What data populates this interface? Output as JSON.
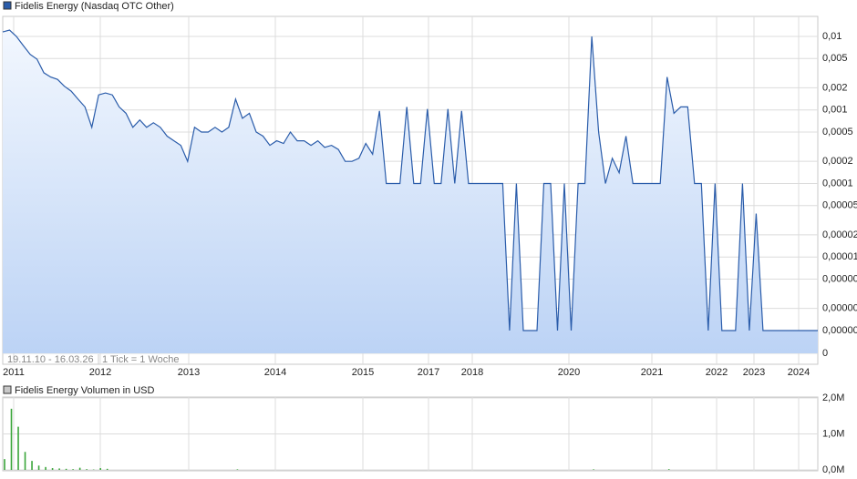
{
  "chart_data": [
    {
      "type": "line",
      "title": "Fidelis Energy (Nasdaq OTC Other)",
      "annotations": [
        "19.11.10 - 16.03.26",
        "1 Tick = 1 Woche"
      ],
      "log_scale": true,
      "grid": true,
      "x_labels": [
        "2011",
        "2012",
        "2013",
        "2014",
        "2015",
        "2017",
        "2018",
        "2020",
        "2021",
        "2022",
        "2023",
        "2024"
      ],
      "series": [
        {
          "name": "Fidelis Energy (Nasdaq OTC Other)",
          "color": "#2a5caa",
          "values": [
            0.0115,
            0.0122,
            0.01,
            0.0075,
            0.0057,
            0.0049,
            0.0032,
            0.0028,
            0.0026,
            0.0021,
            0.0018,
            0.0014,
            0.0011,
            0.00058,
            0.0016,
            0.0017,
            0.0016,
            0.0011,
            0.0009,
            0.00058,
            0.00073,
            0.00058,
            0.00067,
            0.00058,
            0.00044,
            0.00038,
            0.00033,
            0.0002,
            0.00058,
            0.0005,
            0.0005,
            0.00058,
            0.0005,
            0.00058,
            0.0014,
            0.00077,
            0.0009,
            0.0005,
            0.00044,
            0.00033,
            0.00038,
            0.00035,
            0.0005,
            0.00038,
            0.00038,
            0.00033,
            0.00038,
            0.00031,
            0.00033,
            0.00029,
            0.0002,
            0.0002,
            0.00022,
            0.00035,
            0.00025,
            0.00097,
            0.0001,
            0.0001,
            0.0001,
            0.0011,
            0.0001,
            0.0001,
            0.00103,
            0.0001,
            0.0001,
            0.00103,
            0.0001,
            0.00097,
            0.0001,
            0.0001,
            0.0001,
            0.0001,
            0.0001,
            0.0001,
            1e-06,
            0.0001,
            1e-06,
            1e-06,
            1e-06,
            0.0001,
            0.0001,
            1e-06,
            0.0001,
            1e-06,
            0.0001,
            0.0001,
            0.01,
            0.0005,
            0.0001,
            0.00022,
            0.00014,
            0.00044,
            0.0001,
            0.0001,
            0.0001,
            0.0001,
            0.0001,
            0.0028,
            0.0009,
            0.0011,
            0.0011,
            0.0001,
            0.0001,
            1e-06,
            0.0001,
            1e-06,
            1e-06,
            1e-06,
            0.0001,
            1e-06,
            3.9e-05,
            1e-06,
            1e-06,
            1e-06,
            1e-06,
            1e-06,
            1e-06,
            1e-06,
            1e-06,
            1e-06
          ]
        }
      ],
      "ylim": [
        4.9e-07,
        0.0187
      ],
      "yticks": [
        {
          "value": 0.01,
          "label": "0,01"
        },
        {
          "value": 0.005,
          "label": "0,005"
        },
        {
          "value": 0.002,
          "label": "0,002"
        },
        {
          "value": 0.001,
          "label": "0,001"
        },
        {
          "value": 0.0005,
          "label": "0,0005"
        },
        {
          "value": 0.0002,
          "label": "0,0002"
        },
        {
          "value": 0.0001,
          "label": "0,0001"
        },
        {
          "value": 5e-05,
          "label": "0,00005"
        },
        {
          "value": 2e-05,
          "label": "0,00002"
        },
        {
          "value": 1e-05,
          "label": "0,00001"
        },
        {
          "value": 5e-06,
          "label": "0,00000"
        },
        {
          "value": 2e-06,
          "label": "0,00000"
        },
        {
          "value": 1e-06,
          "label": "0,00000"
        },
        0
      ]
    },
    {
      "type": "bar",
      "title": "Fidelis Energy Volumen in USD",
      "color": "#3aa53a",
      "grid": true,
      "values": [
        300000,
        1700000,
        1200000,
        500000,
        250000,
        120000,
        80000,
        50000,
        40000,
        30000,
        20000,
        60000,
        20000,
        10000,
        50000,
        30000,
        0,
        0,
        0,
        0,
        0,
        0,
        0,
        0,
        0,
        0,
        0,
        0,
        0,
        0,
        0,
        0,
        0,
        0,
        15000,
        0,
        0,
        0,
        0,
        0,
        0,
        0,
        0,
        0,
        0,
        0,
        0,
        0,
        0,
        0,
        0,
        0,
        0,
        0,
        0,
        0,
        0,
        0,
        0,
        0,
        0,
        0,
        0,
        0,
        0,
        0,
        0,
        0,
        0,
        0,
        0,
        0,
        0,
        0,
        0,
        0,
        0,
        0,
        0,
        0,
        0,
        0,
        0,
        0,
        0,
        0,
        15000,
        0,
        0,
        0,
        0,
        0,
        0,
        0,
        0,
        0,
        0,
        20000,
        0,
        0,
        0,
        0,
        0,
        0,
        0,
        0,
        0,
        0,
        0,
        0,
        0,
        0,
        0,
        0,
        0,
        0,
        0,
        0,
        0,
        0
      ],
      "ylim": [
        0,
        2000000
      ],
      "yticks": [
        {
          "value": 0,
          "label": "0,0M"
        },
        {
          "value": 1000000,
          "label": "1,0M"
        },
        {
          "value": 2000000,
          "label": "2,0M"
        }
      ]
    }
  ]
}
